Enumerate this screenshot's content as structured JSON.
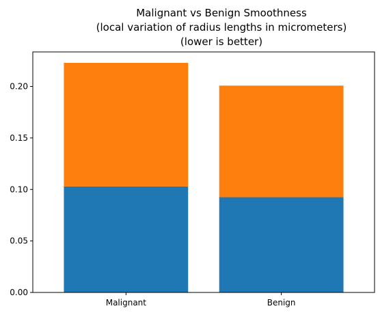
{
  "chart_data": {
    "type": "bar",
    "stacked": true,
    "title_lines": [
      "Malignant vs Benign Smoothness",
      "(local variation of radius lengths in micrometers)",
      "(lower is better)"
    ],
    "xlabel": "",
    "ylabel": "",
    "categories": [
      "Malignant",
      "Benign"
    ],
    "series": [
      {
        "values": [
          0.1029,
          0.0925
        ],
        "color": "#1f77b4"
      },
      {
        "values": [
          0.12,
          0.1083
        ],
        "color": "#ff7f0e"
      }
    ],
    "ylim": [
      0,
      0.2335
    ],
    "yticks": [
      "0.00",
      "0.05",
      "0.10",
      "0.15",
      "0.20"
    ],
    "grid": false,
    "legend": false
  }
}
